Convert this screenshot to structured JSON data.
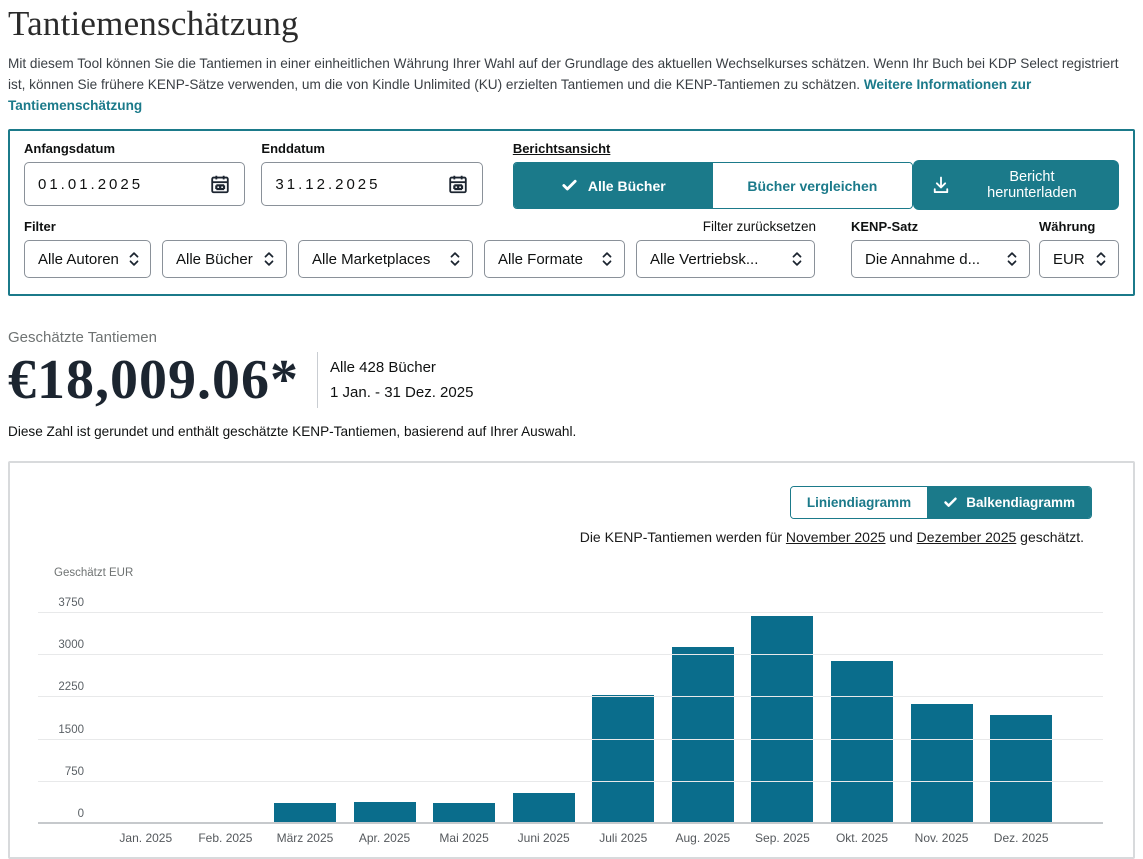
{
  "colors": {
    "accent_teal": "#1b7a8a",
    "bar_teal": "#0a6d8c",
    "panel_border_gray": "#d8dadc"
  },
  "page": {
    "title": "Tantiemenschätzung",
    "description": "Mit diesem Tool können Sie die Tantiemen in einer einheitlichen Währung Ihrer Wahl auf der Grundlage des aktuellen Wechselkurses schätzen. Wenn Ihr Buch bei KDP Select registriert ist, können Sie frühere KENP-Sätze verwenden, um die von Kindle Unlimited (KU) erzielten Tantiemen und die KENP-Tantiemen zu schätzen.",
    "learn_more_link": "Weitere Informationen zur Tantiemenschätzung"
  },
  "filter_panel": {
    "start_date": {
      "label": "Anfangsdatum",
      "value": "01.01.2025"
    },
    "end_date": {
      "label": "Enddatum",
      "value": "31.12.2025"
    },
    "report_view": {
      "label": "Berichtsansicht",
      "option_all_books": "Alle Bücher",
      "option_compare_books": "Bücher vergleichen",
      "selected": "Alle Bücher"
    },
    "download_button": "Bericht herunterladen",
    "filter_label": "Filter",
    "reset_filters": "Filter zurücksetzen",
    "dropdowns": {
      "authors": "Alle Autoren",
      "books": "Alle Bücher",
      "marketplaces": "Alle Marketplaces",
      "formats": "Alle Formate",
      "channels": "Alle Vertriebsk..."
    },
    "kenp": {
      "label": "KENP-Satz",
      "value": "Die Annahme d..."
    },
    "currency": {
      "label": "Währung",
      "value": "EUR"
    }
  },
  "summary": {
    "label": "Geschätzte Tantiemen",
    "amount": "€18,009.06*",
    "scope": "Alle 428 Bücher",
    "date_range": "1 Jan. - 31 Dez. 2025",
    "note": "Diese Zahl ist gerundet und enthält geschätzte KENP-Tantiemen, basierend auf Ihrer Auswahl."
  },
  "chart_section": {
    "toggle": {
      "line_chart": "Liniendiagramm",
      "bar_chart": "Balkendiagramm",
      "selected": "Balkendiagramm"
    },
    "note": {
      "prefix": "Die KENP-Tantiemen werden für ",
      "month1": "November 2025",
      "middle": " und ",
      "month2": "Dezember 2025",
      "suffix": " geschätzt."
    }
  },
  "chart_data": {
    "type": "bar",
    "title": "",
    "xlabel": "",
    "ylabel": "Geschätzt EUR",
    "categories": [
      "Jan. 2025",
      "Feb. 2025",
      "März 2025",
      "Apr. 2025",
      "Mai 2025",
      "Juni 2025",
      "Juli 2025",
      "Aug. 2025",
      "Sep. 2025",
      "Okt. 2025",
      "Nov. 2025",
      "Dez. 2025"
    ],
    "values": [
      30,
      15,
      380,
      390,
      370,
      550,
      2300,
      3150,
      3690,
      2900,
      2130,
      1930
    ],
    "yticks": [
      0,
      750,
      1500,
      2250,
      3000,
      3750
    ],
    "ylim": [
      0,
      3750
    ],
    "grid": true,
    "legend": false,
    "bar_color": "#0a6d8c"
  }
}
